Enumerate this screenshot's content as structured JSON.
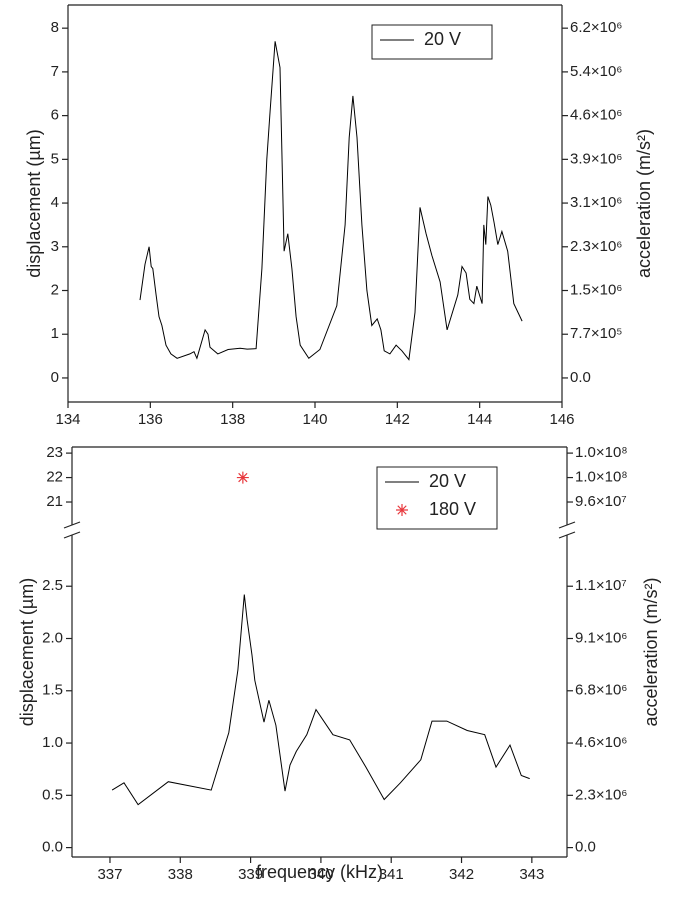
{
  "chart_data": [
    {
      "type": "line",
      "ylabel": "displacement (µm)",
      "y2label": "acceleration (m/s²)",
      "xlim": [
        134,
        146
      ],
      "xticks": [
        134,
        136,
        138,
        140,
        142,
        144,
        146
      ],
      "ylim": [
        -0.55,
        8.53
      ],
      "yticks": [
        0,
        1,
        2,
        3,
        4,
        5,
        6,
        7,
        8
      ],
      "y2lim": [
        -425150,
        6593690
      ],
      "y2ticks": [
        {
          "value": 0,
          "label": "0.0"
        },
        {
          "value": 773000,
          "label": "7.7×10⁵"
        },
        {
          "value": 1546000,
          "label": "1.5×10⁶"
        },
        {
          "value": 2319000,
          "label": "2.3×10⁶"
        },
        {
          "value": 3092000,
          "label": "3.1×10⁶"
        },
        {
          "value": 3865000,
          "label": "3.9×10⁶"
        },
        {
          "value": 4638000,
          "label": "4.6×10⁶"
        },
        {
          "value": 5411000,
          "label": "5.4×10⁶"
        },
        {
          "value": 6184000,
          "label": "6.2×10⁶"
        }
      ],
      "legend": "upper right",
      "series": [
        {
          "name": "20 V",
          "color": "#000000",
          "x": [
            135.75,
            135.87,
            135.97,
            136.02,
            136.06,
            136.14,
            136.21,
            136.28,
            136.38,
            136.5,
            136.65,
            136.96,
            137.06,
            137.13,
            137.33,
            137.4,
            137.45,
            137.64,
            137.89,
            138.18,
            138.35,
            138.57,
            138.71,
            138.83,
            138.91,
            139.03,
            139.15,
            139.25,
            139.34,
            139.44,
            139.54,
            139.64,
            139.85,
            140.12,
            140.53,
            140.73,
            140.83,
            140.92,
            141.02,
            141.14,
            141.26,
            141.38,
            141.51,
            141.6,
            141.68,
            141.82,
            141.97,
            142.11,
            142.28,
            142.43,
            142.55,
            142.7,
            142.84,
            143.04,
            143.21,
            143.47,
            143.57,
            143.67,
            143.76,
            143.86,
            143.93,
            144.06,
            144.1,
            144.15,
            144.2,
            144.27,
            144.35,
            144.44,
            144.54,
            144.68,
            144.83,
            145.03
          ],
          "values": [
            1.78,
            2.6,
            3.0,
            2.55,
            2.5,
            1.9,
            1.4,
            1.2,
            0.75,
            0.55,
            0.45,
            0.55,
            0.6,
            0.45,
            1.1,
            1.0,
            0.7,
            0.55,
            0.65,
            0.68,
            0.66,
            0.67,
            2.5,
            5.0,
            6.1,
            7.7,
            7.1,
            2.9,
            3.3,
            2.5,
            1.4,
            0.75,
            0.45,
            0.65,
            1.65,
            3.5,
            5.5,
            6.45,
            5.5,
            3.5,
            2.0,
            1.2,
            1.35,
            1.1,
            0.62,
            0.55,
            0.75,
            0.62,
            0.42,
            1.5,
            3.9,
            3.3,
            2.8,
            2.2,
            1.1,
            1.9,
            2.55,
            2.4,
            1.8,
            1.7,
            2.1,
            1.7,
            3.5,
            3.05,
            4.15,
            3.95,
            3.55,
            3.05,
            3.35,
            2.9,
            1.7,
            1.3
          ]
        }
      ]
    },
    {
      "type": "line",
      "xlabel": "frequency (kHz)",
      "ylabel": "displacement (µm)",
      "y2label": "acceleration (m/s²)",
      "xlim": [
        336.46,
        343.5
      ],
      "xticks": [
        337,
        338,
        339,
        340,
        341,
        342,
        343
      ],
      "ylim": [
        -0.09,
        2.99
      ],
      "yticks": [
        {
          "value": 0,
          "label": "0.0"
        },
        {
          "value": 0.5,
          "label": "0.5"
        },
        {
          "value": 1,
          "label": "1.0"
        },
        {
          "value": 1.5,
          "label": "1.5"
        },
        {
          "value": 2,
          "label": "2.0"
        },
        {
          "value": 2.5,
          "label": "2.5"
        }
      ],
      "ylim_upper": [
        20.06,
        23.25
      ],
      "yticks_upper": [
        21,
        22,
        23
      ],
      "y2lim": [
        -409500,
        13604500
      ],
      "y2ticks": [
        {
          "value": 0,
          "label": "0.0"
        },
        {
          "value": 2275000,
          "label": "2.3×10⁶"
        },
        {
          "value": 4550000,
          "label": "4.6×10⁶"
        },
        {
          "value": 6825000,
          "label": "6.8×10⁶"
        },
        {
          "value": 9100000,
          "label": "9.1×10⁶"
        },
        {
          "value": 11375000,
          "label": "1.1×10⁷"
        }
      ],
      "y2lim_upper": [
        91273000,
        105787500
      ],
      "y2ticks_upper": [
        {
          "value": 95550000,
          "label": "9.6×10⁷"
        },
        {
          "value": 100100000,
          "label": "1.0×10⁸"
        },
        {
          "value": 104650000,
          "label": "1.0×10⁸"
        }
      ],
      "legend": "upper right",
      "series": [
        {
          "name": "20 V",
          "color": "#000000",
          "x": [
            337.03,
            337.2,
            337.4,
            337.83,
            338.44,
            338.69,
            338.82,
            338.91,
            338.95,
            339.02,
            339.06,
            339.19,
            339.26,
            339.36,
            339.49,
            339.56,
            339.65,
            339.8,
            339.93,
            340.17,
            340.41,
            340.64,
            340.9,
            341.13,
            341.42,
            341.58,
            341.79,
            342.08,
            342.33,
            342.49,
            342.69,
            342.85,
            342.97
          ],
          "values": [
            0.55,
            0.62,
            0.41,
            0.63,
            0.55,
            1.1,
            1.7,
            2.42,
            2.18,
            1.84,
            1.6,
            1.2,
            1.41,
            1.17,
            0.54,
            0.79,
            0.92,
            1.08,
            1.32,
            1.08,
            1.03,
            0.77,
            0.46,
            0.62,
            0.84,
            1.21,
            1.21,
            1.12,
            1.08,
            0.77,
            0.98,
            0.69,
            0.66
          ]
        },
        {
          "name": "180 V",
          "color": "#e8383d",
          "marker": "asterisk",
          "x": [
            338.89
          ],
          "values": [
            22
          ]
        }
      ]
    }
  ]
}
